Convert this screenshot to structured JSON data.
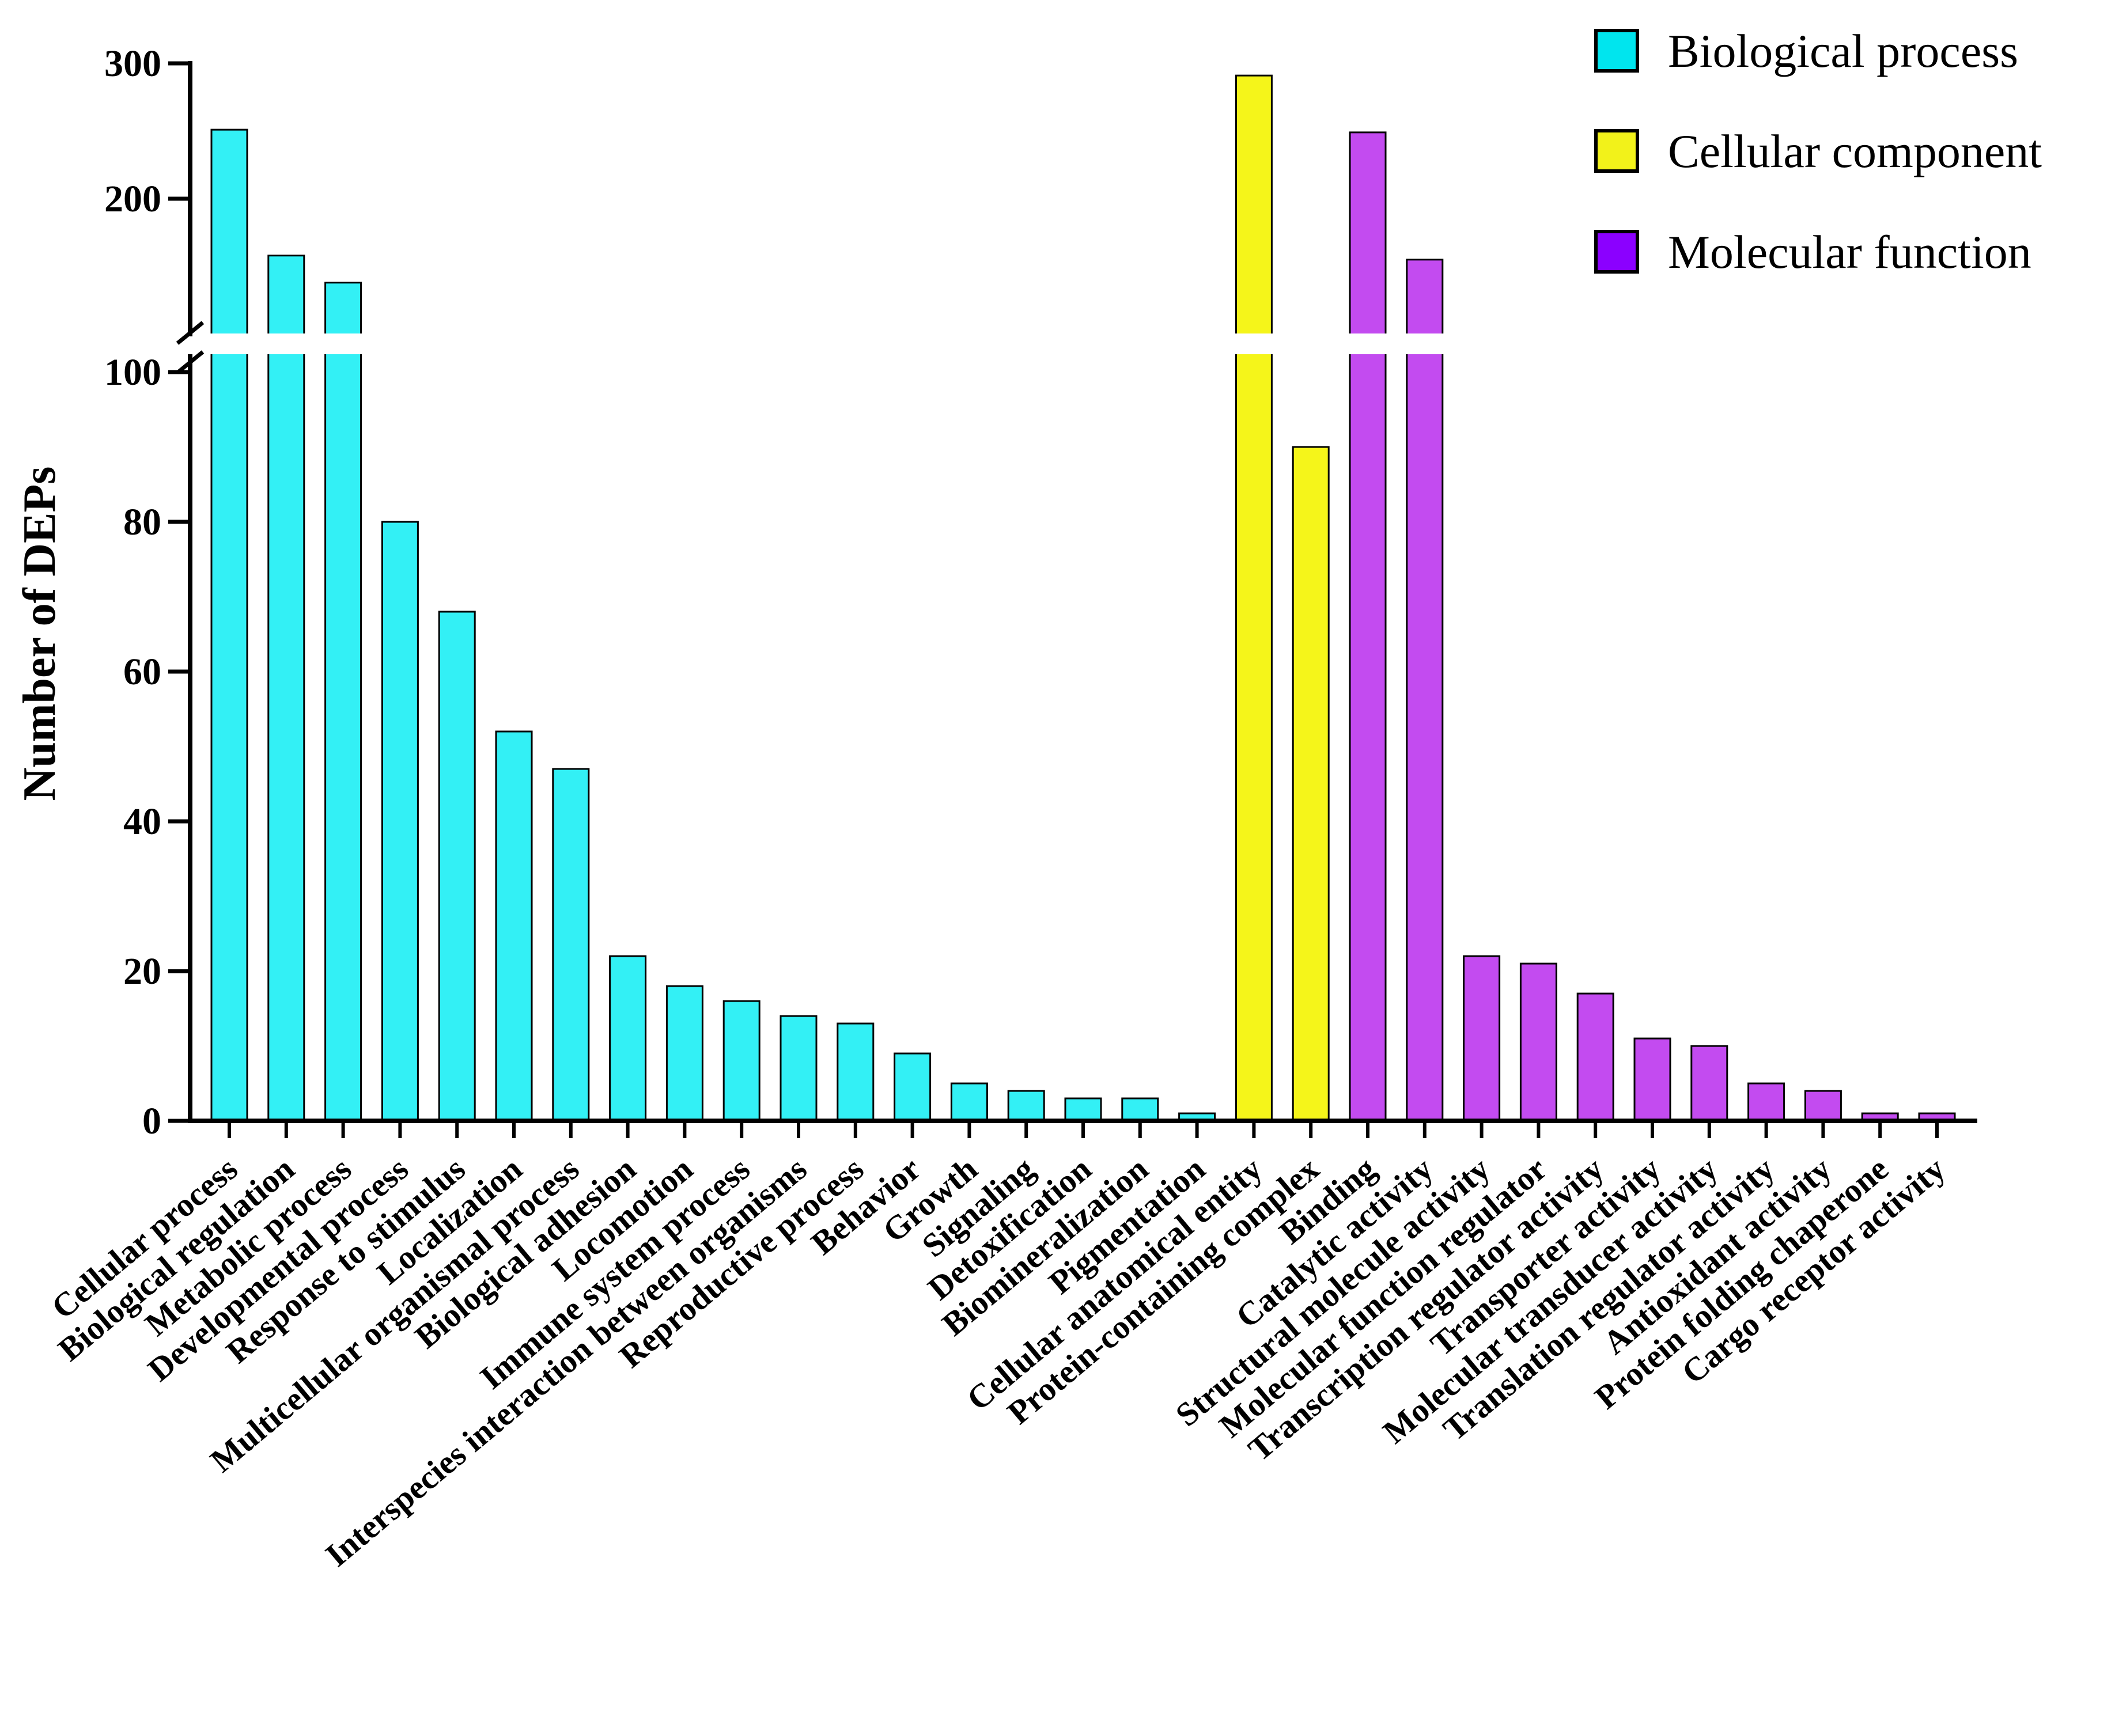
{
  "chart_data": {
    "type": "bar",
    "ylabel": "Number of DEPs",
    "xlabel": "",
    "title": "",
    "y_axis": {
      "broken": true,
      "lower_range": [
        0,
        100
      ],
      "upper_range": [
        100,
        300
      ],
      "lower_ticks": [
        0,
        20,
        40,
        60,
        80,
        100
      ],
      "upper_ticks": [
        200,
        300
      ]
    },
    "legend_position": "top-right",
    "series": [
      {
        "name": "Biological process",
        "color": "#33f0f5"
      },
      {
        "name": "Cellular component",
        "color": "#f5f51a"
      },
      {
        "name": "Molecular function",
        "color": "#c34bf0"
      }
    ],
    "legend_swatch_colors": [
      "#00e5ee",
      "#f2f21a",
      "#8b00ff"
    ],
    "categories": [
      "Cellular process",
      "Biological regulation",
      "Metabolic process",
      "Developmental process",
      "Response to stimulus",
      "Localization",
      "Multicellular organismal process",
      "Biological adhesion",
      "Locomotion",
      "Immune system process",
      "Interspecies interaction between organisms",
      "Reproductive process",
      "Behavior",
      "Growth",
      "Signaling",
      "Detoxification",
      "Biomineralization",
      "Pigmentation",
      "Cellular anatomical entity",
      "Protein-containing complex",
      "Binding",
      "Catalytic activity",
      "Structural molecule activity",
      "Molecular function regulator",
      "Transcription regulator activity",
      "Transporter activity",
      "Molecular transducer activity",
      "Translation regulator activity",
      "Antioxidant activity",
      "Protein folding chaperone",
      "Cargo receptor activity"
    ],
    "values": [
      251,
      158,
      138,
      80,
      68,
      52,
      47,
      22,
      18,
      16,
      14,
      13,
      9,
      5,
      4,
      3,
      3,
      1,
      291,
      90,
      249,
      155,
      22,
      21,
      17,
      11,
      10,
      5,
      4,
      1,
      1
    ],
    "groups": [
      "Biological process",
      "Biological process",
      "Biological process",
      "Biological process",
      "Biological process",
      "Biological process",
      "Biological process",
      "Biological process",
      "Biological process",
      "Biological process",
      "Biological process",
      "Biological process",
      "Biological process",
      "Biological process",
      "Biological process",
      "Biological process",
      "Biological process",
      "Biological process",
      "Cellular component",
      "Cellular component",
      "Molecular function",
      "Molecular function",
      "Molecular function",
      "Molecular function",
      "Molecular function",
      "Molecular function",
      "Molecular function",
      "Molecular function",
      "Molecular function",
      "Molecular function",
      "Molecular function"
    ]
  }
}
